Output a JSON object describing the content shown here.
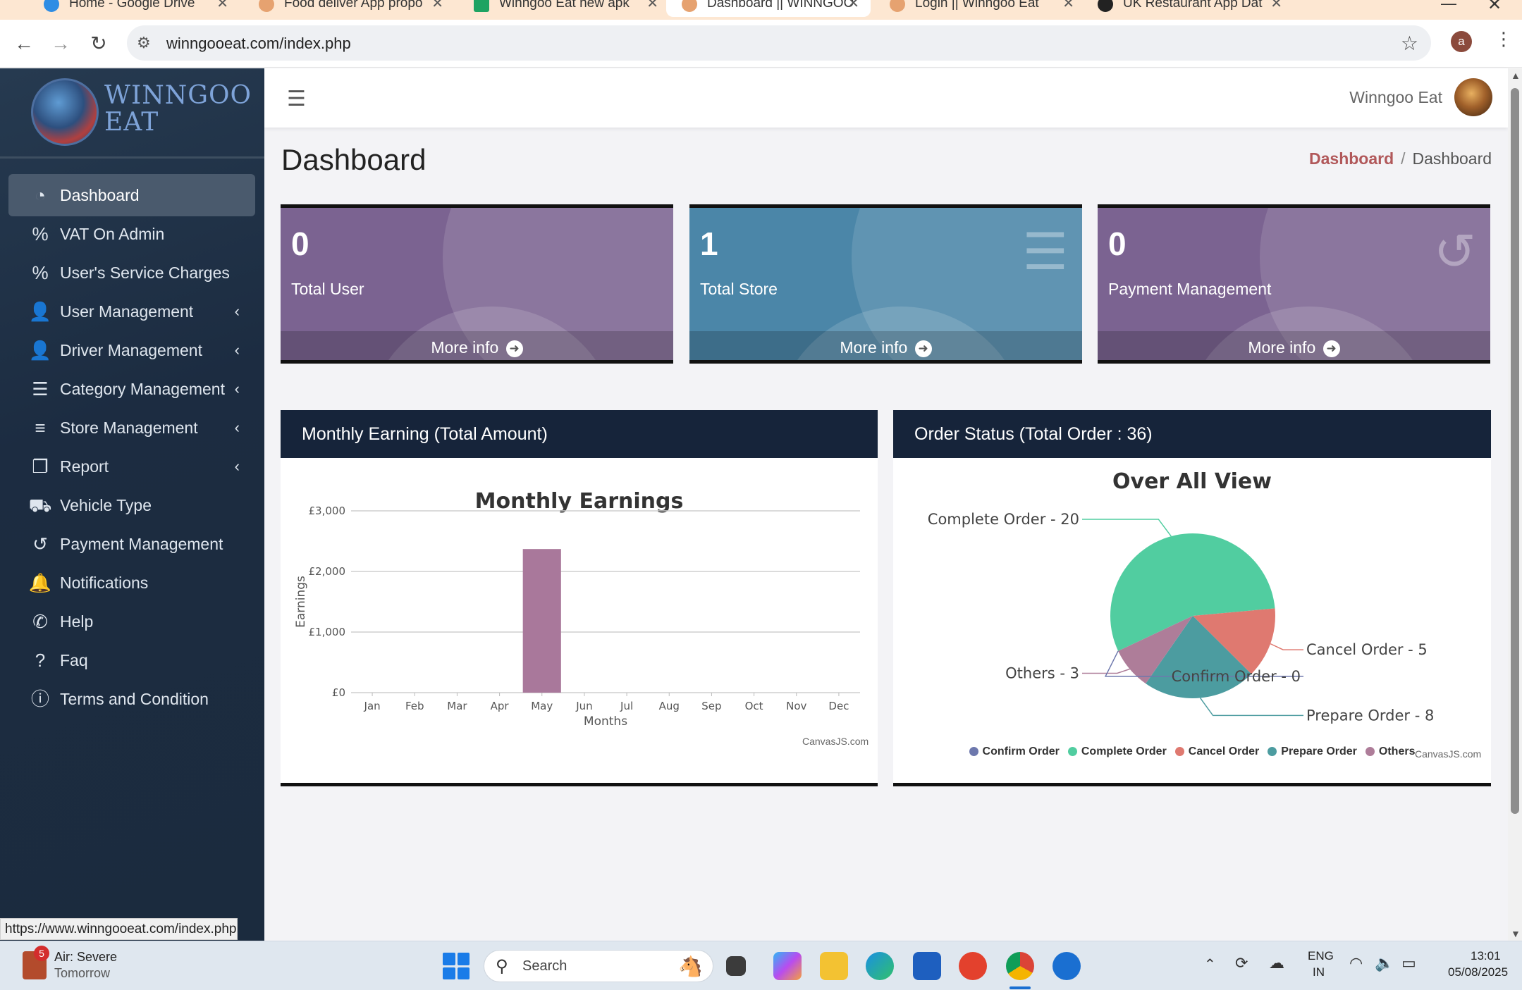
{
  "browser": {
    "tabs": [
      {
        "label": "Home - Google Drive"
      },
      {
        "label": "Food deliver App propo"
      },
      {
        "label": "Winngoo Eat new apk"
      },
      {
        "label": "Dashboard || WINNGOO"
      },
      {
        "label": "Login || Winngoo Eat"
      },
      {
        "label": "UK Restaurant App Dat"
      }
    ],
    "url": "winngooeat.com/index.php",
    "profile_initial": "a",
    "status_url": "https://www.winngooeat.com/index.php"
  },
  "sidebar": {
    "brand_line1": "WINNGOO",
    "brand_line2": "EAT",
    "items": [
      {
        "label": "Dashboard",
        "icon": "dashboard-icon",
        "active": true
      },
      {
        "label": "VAT On Admin",
        "icon": "percent-icon"
      },
      {
        "label": "User's Service Charges",
        "icon": "percent-icon"
      },
      {
        "label": "User Management",
        "icon": "user-icon"
      },
      {
        "label": "Driver Management",
        "icon": "user-icon"
      },
      {
        "label": "Category Management",
        "icon": "list-icon"
      },
      {
        "label": "Store Management",
        "icon": "bars-icon"
      },
      {
        "label": "Report",
        "icon": "copy-icon"
      },
      {
        "label": "Vehicle Type",
        "icon": "truck-icon"
      },
      {
        "label": "Payment Management",
        "icon": "history-icon"
      },
      {
        "label": "Notifications",
        "icon": "bell-icon"
      },
      {
        "label": "Help",
        "icon": "phone-icon"
      },
      {
        "label": "Faq",
        "icon": "question-icon"
      },
      {
        "label": "Terms and Condition",
        "icon": "info-icon"
      }
    ]
  },
  "topbar": {
    "user_name": "Winngoo Eat"
  },
  "page": {
    "title": "Dashboard",
    "breadcrumb_link": "Dashboard",
    "breadcrumb_sep": "/",
    "breadcrumb_current": "Dashboard"
  },
  "cards": [
    {
      "value": "0",
      "label": "Total User",
      "more": "More info",
      "color": "#7b6391"
    },
    {
      "value": "1",
      "label": "Total Store",
      "more": "More info",
      "color": "#4b86a8"
    },
    {
      "value": "0",
      "label": "Payment Management",
      "more": "More info",
      "color": "#7b6391"
    }
  ],
  "panels": {
    "earning_header": "Monthly Earning (Total Amount)",
    "order_header": "Order Status (Total Order : 36)",
    "credit": "CanvasJS.com"
  },
  "chart_data": [
    {
      "type": "bar",
      "title": "Monthly Earnings",
      "xlabel": "Months",
      "ylabel": "Earnings",
      "categories": [
        "Jan",
        "Feb",
        "Mar",
        "Apr",
        "May",
        "Jun",
        "Jul",
        "Aug",
        "Sep",
        "Oct",
        "Nov",
        "Dec"
      ],
      "values": [
        0,
        0,
        0,
        0,
        2370,
        0,
        0,
        0,
        0,
        0,
        0,
        0
      ],
      "ylim": [
        0,
        3000
      ],
      "yticks": [
        "£0",
        "£1,000",
        "£2,000",
        "£3,000"
      ],
      "color": "#a9789b",
      "grid": true
    },
    {
      "type": "pie",
      "title": "Over All View",
      "series": [
        {
          "name": "Confirm Order",
          "value": 0,
          "label": "Confirm Order - 0",
          "color": "#6d78ad"
        },
        {
          "name": "Complete Order",
          "value": 20,
          "label": "Complete Order - 20",
          "color": "#51cda0"
        },
        {
          "name": "Cancel Order",
          "value": 5,
          "label": "Cancel Order - 5",
          "color": "#df7970"
        },
        {
          "name": "Prepare Order",
          "value": 8,
          "label": "Prepare Order - 8",
          "color": "#4c9ca0"
        },
        {
          "name": "Others",
          "value": 3,
          "label": "Others - 3",
          "color": "#ae7d99"
        }
      ],
      "legend": "bottom"
    }
  ],
  "taskbar": {
    "weather_title": "Air: Severe",
    "weather_sub": "Tomorrow",
    "weather_badge": "5",
    "search_placeholder": "Search",
    "lang1": "ENG",
    "lang2": "IN",
    "time": "13:01",
    "date": "05/08/2025"
  }
}
